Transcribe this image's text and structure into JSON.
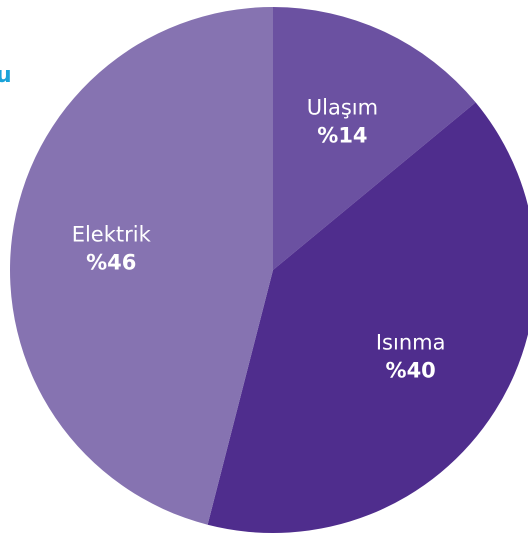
{
  "chart_data": {
    "type": "pie",
    "title": "u",
    "categories": [
      "Ulaşım",
      "Isınma",
      "Elektrik"
    ],
    "values": [
      14,
      40,
      46
    ],
    "value_labels": [
      "%14",
      "%40",
      "%46"
    ],
    "colors": [
      "#6b51a1",
      "#4f2d8d",
      "#8673b1"
    ]
  }
}
